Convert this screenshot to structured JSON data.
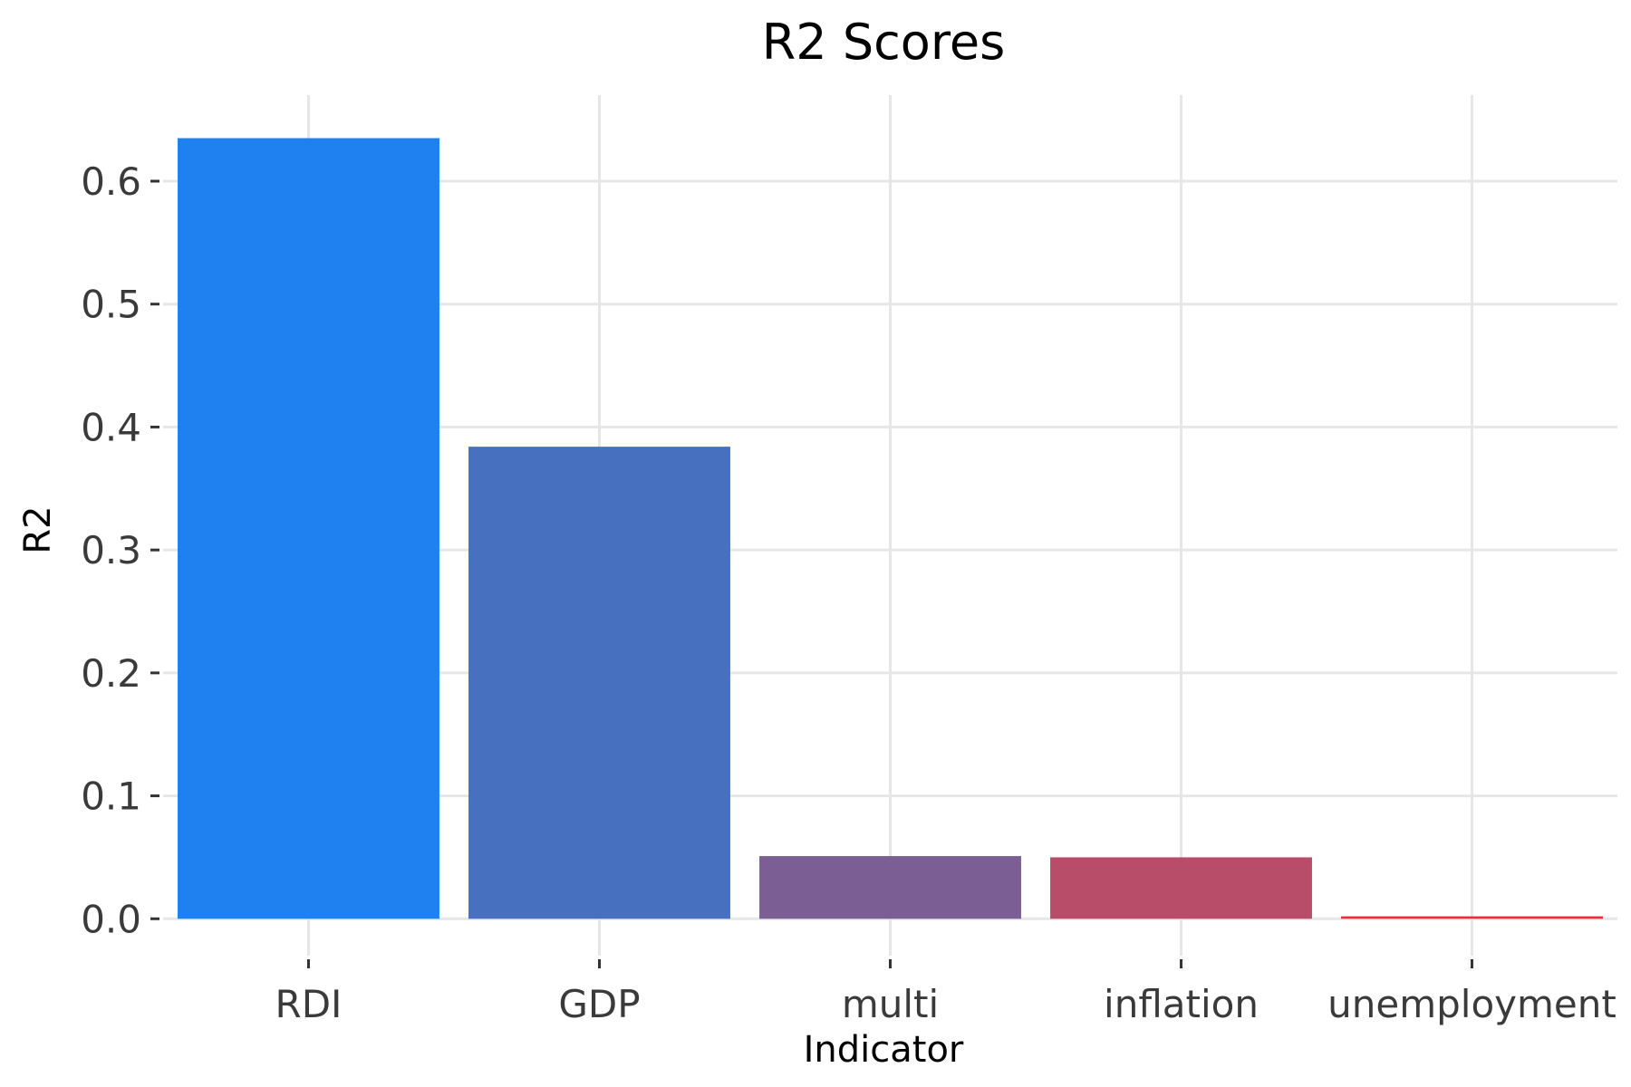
{
  "chart_data": {
    "type": "bar",
    "title": "R2 Scores",
    "xlabel": "Indicator",
    "ylabel": "R2",
    "categories": [
      "RDI",
      "GDP",
      "multi",
      "inflation",
      "unemployment"
    ],
    "values": [
      0.635,
      0.384,
      0.051,
      0.05,
      0.002
    ],
    "colors": [
      "#1f80ef",
      "#4770bf",
      "#7b5f94",
      "#b84d69",
      "#e8303c"
    ],
    "ylim": [
      -0.03,
      0.67
    ],
    "yticks": [
      0.0,
      0.1,
      0.2,
      0.3,
      0.4,
      0.5,
      0.6
    ],
    "ytick_labels": [
      "0.0",
      "0.1",
      "0.2",
      "0.3",
      "0.4",
      "0.5",
      "0.6"
    ],
    "grid": true,
    "legend": "none"
  }
}
